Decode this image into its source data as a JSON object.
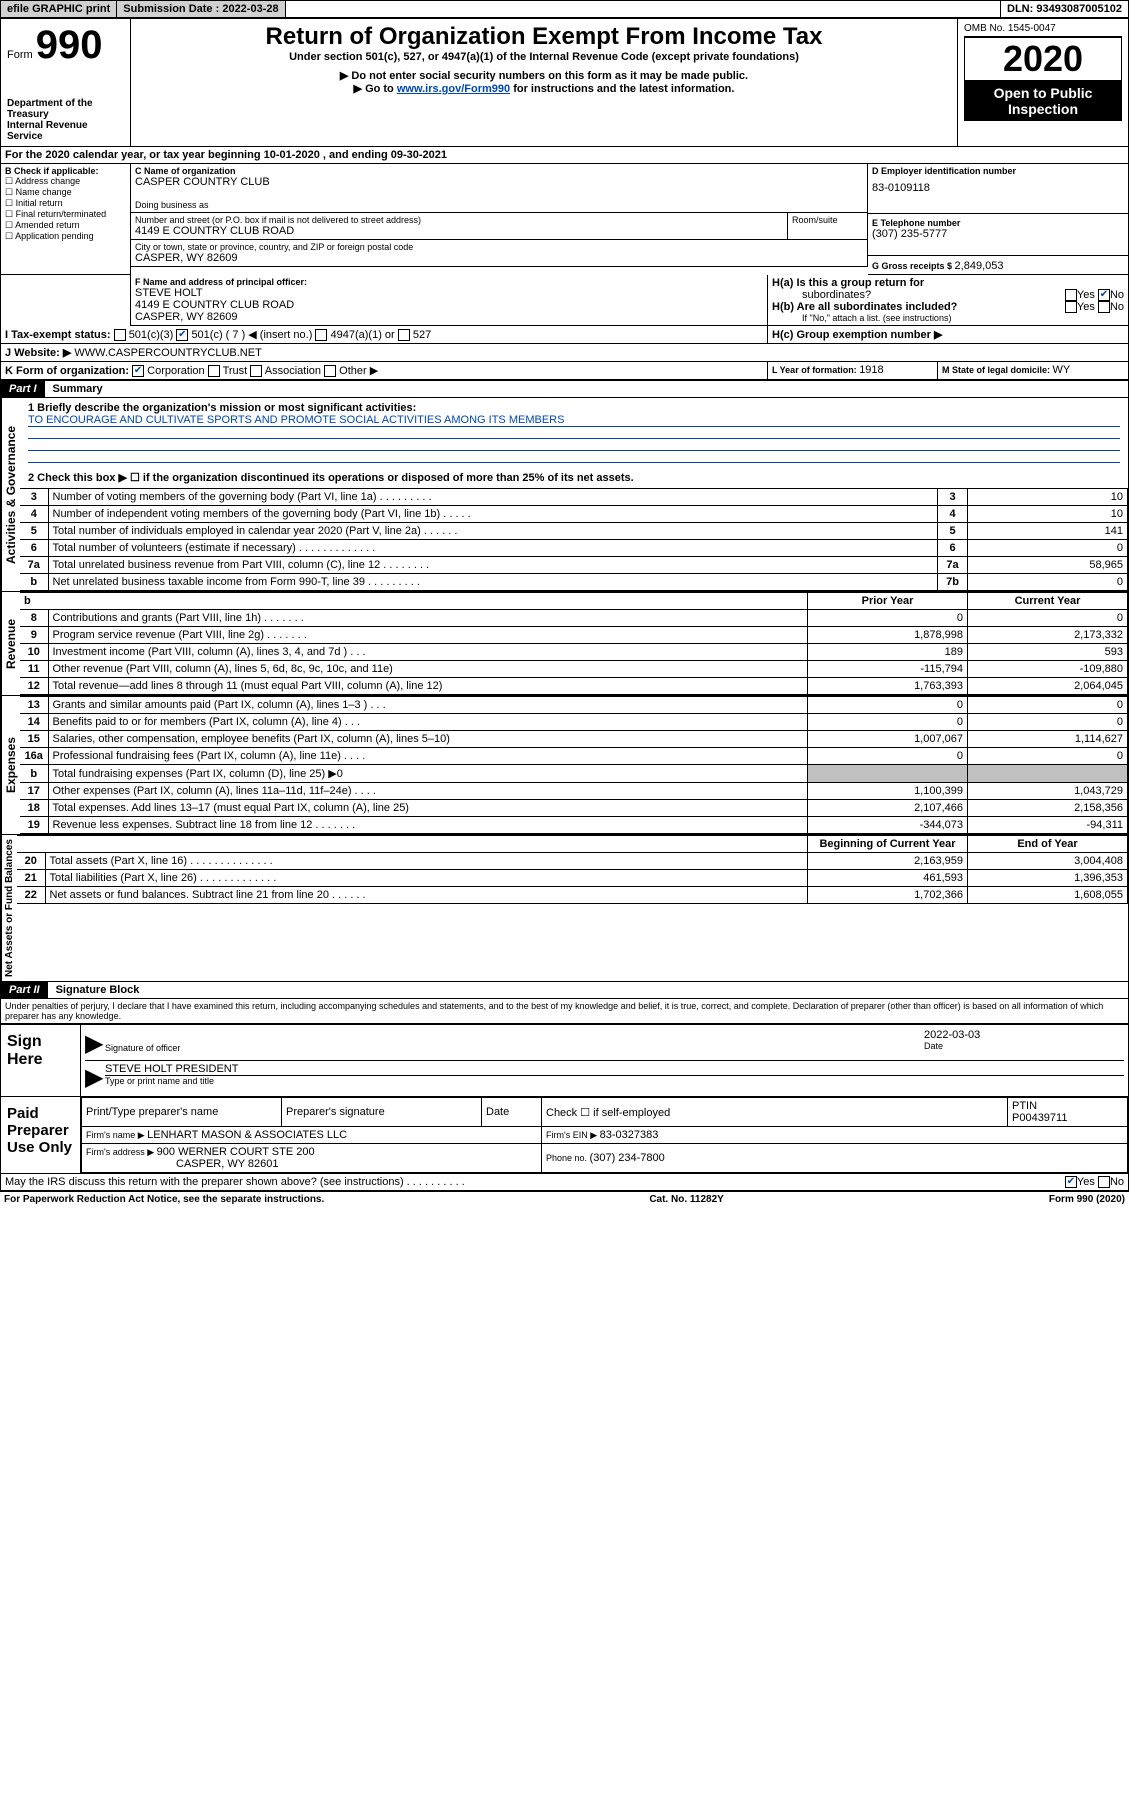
{
  "topbar": {
    "efile": "efile GRAPHIC print",
    "sub_label": "Submission Date : ",
    "sub_date": "2022-03-28",
    "dln_label": "DLN: ",
    "dln": "93493087005102"
  },
  "header": {
    "form_word": "Form",
    "form_no": "990",
    "dept1": "Department of the",
    "dept2": "Treasury",
    "dept3": "Internal Revenue Service",
    "title": "Return of Organization Exempt From Income Tax",
    "sub1": "Under section 501(c), 527, or 4947(a)(1) of the Internal Revenue Code (except private foundations)",
    "sub2": "▶ Do not enter social security numbers on this form as it may be made public.",
    "sub3a": "▶ Go to ",
    "sub3_link": "www.irs.gov/Form990",
    "sub3b": " for instructions and the latest information.",
    "omb": "OMB No. 1545-0047",
    "year": "2020",
    "inspect1": "Open to Public",
    "inspect2": "Inspection"
  },
  "line_a": "For the 2020 calendar year, or tax year beginning 10-01-2020   , and ending 09-30-2021",
  "box_b": {
    "hdr": "B Check if applicable:",
    "items": [
      "Address change",
      "Name change",
      "Initial return",
      "Final return/terminated",
      "Amended return",
      "Application pending"
    ]
  },
  "box_c": {
    "hdr_name": "C Name of organization",
    "org": "CASPER COUNTRY CLUB",
    "dba_hdr": "Doing business as",
    "street_hdr": "Number and street (or P.O. box if mail is not delivered to street address)",
    "room_hdr": "Room/suite",
    "street": "4149 E COUNTRY CLUB ROAD",
    "city_hdr": "City or town, state or province, country, and ZIP or foreign postal code",
    "city": "CASPER, WY  82609"
  },
  "box_d": {
    "hdr": "D Employer identification number",
    "val": "83-0109118"
  },
  "box_e": {
    "hdr": "E Telephone number",
    "val": "(307) 235-5777"
  },
  "box_g": {
    "hdr": "G Gross receipts $ ",
    "val": "2,849,053"
  },
  "box_f": {
    "hdr": "F Name and address of principal officer:",
    "name": "STEVE HOLT",
    "addr1": "4149 E COUNTRY CLUB ROAD",
    "addr2": "CASPER, WY  82609"
  },
  "box_h": {
    "a": "H(a)  Is this a group return for",
    "a2": "subordinates?",
    "b": "H(b)  Are all subordinates included?",
    "b2": "If \"No,\" attach a list. (see instructions)",
    "c": "H(c)  Group exemption number ▶",
    "yes": "Yes",
    "no": "No"
  },
  "line_i": {
    "label": "I  Tax-exempt status:",
    "o1": "501(c)(3)",
    "o2": "501(c) ( 7 ) ◀ (insert no.)",
    "o3": "4947(a)(1) or",
    "o4": "527"
  },
  "line_j": {
    "label": "J  Website: ▶",
    "val": "WWW.CASPERCOUNTRYCLUB.NET"
  },
  "line_k": {
    "label": "K Form of organization:",
    "o1": "Corporation",
    "o2": "Trust",
    "o3": "Association",
    "o4": "Other ▶"
  },
  "line_l": {
    "label": "L Year of formation: ",
    "val": "1918"
  },
  "line_m": {
    "label": "M State of legal domicile: ",
    "val": "WY"
  },
  "part1": {
    "hdr": "Part I",
    "title": "Summary",
    "side1": "Activities & Governance",
    "side2": "Revenue",
    "side3": "Expenses",
    "side4": "Net Assets or Fund Balances",
    "q1": "1  Briefly describe the organization's mission or most significant activities:",
    "q1_ans": "TO ENCOURAGE AND CULTIVATE SPORTS AND PROMOTE SOCIAL ACTIVITIES AMONG ITS MEMBERS",
    "q2": "2   Check this box ▶ ☐  if the organization discontinued its operations or disposed of more than 25% of its net assets.",
    "col_prior": "Prior Year",
    "col_curr": "Current Year",
    "col_beg": "Beginning of Current Year",
    "col_end": "End of Year",
    "rows_gov": [
      {
        "n": "3",
        "t": "Number of voting members of the governing body (Part VI, line 1a)   .    .    .    .    .    .    .    .    .",
        "c": "3",
        "v": "10"
      },
      {
        "n": "4",
        "t": "Number of independent voting members of the governing body (Part VI, line 1b)   .    .    .    .    .",
        "c": "4",
        "v": "10"
      },
      {
        "n": "5",
        "t": "Total number of individuals employed in calendar year 2020 (Part V, line 2a)   .    .    .    .    .    .",
        "c": "5",
        "v": "141"
      },
      {
        "n": "6",
        "t": "Total number of volunteers (estimate if necessary)    .    .    .    .    .    .    .    .    .    .    .    .    .",
        "c": "6",
        "v": "0"
      },
      {
        "n": "7a",
        "t": "Total unrelated business revenue from Part VIII, column (C), line 12   .    .    .    .    .    .    .    .",
        "c": "7a",
        "v": "58,965"
      },
      {
        "n": "",
        "t": "Net unrelated business taxable income from Form 990-T, line 39  .    .    .    .    .    .    .    .    .",
        "c": "7b",
        "v": "0",
        "sub": "b"
      }
    ],
    "rows_rev": [
      {
        "n": "8",
        "t": "Contributions and grants (Part VIII, line 1h)    .    .    .    .    .    .    .",
        "p": "0",
        "c": "0"
      },
      {
        "n": "9",
        "t": "Program service revenue (Part VIII, line 2g)   .    .    .    .    .    .    .",
        "p": "1,878,998",
        "c": "2,173,332"
      },
      {
        "n": "10",
        "t": "Investment income (Part VIII, column (A), lines 3, 4, and 7d )   .    .    .",
        "p": "189",
        "c": "593"
      },
      {
        "n": "11",
        "t": "Other revenue (Part VIII, column (A), lines 5, 6d, 8c, 9c, 10c, and 11e)",
        "p": "-115,794",
        "c": "-109,880"
      },
      {
        "n": "12",
        "t": "Total revenue—add lines 8 through 11 (must equal Part VIII, column (A), line 12)",
        "p": "1,763,393",
        "c": "2,064,045"
      }
    ],
    "rows_exp": [
      {
        "n": "13",
        "t": "Grants and similar amounts paid (Part IX, column (A), lines 1–3 )   .    .    .",
        "p": "0",
        "c": "0"
      },
      {
        "n": "14",
        "t": "Benefits paid to or for members (Part IX, column (A), line 4)   .    .    .",
        "p": "0",
        "c": "0"
      },
      {
        "n": "15",
        "t": "Salaries, other compensation, employee benefits (Part IX, column (A), lines 5–10)",
        "p": "1,007,067",
        "c": "1,114,627"
      },
      {
        "n": "16a",
        "t": "Professional fundraising fees (Part IX, column (A), line 11e)   .    .    .    .",
        "p": "0",
        "c": "0"
      },
      {
        "n": "b",
        "t": "Total fundraising expenses (Part IX, column (D), line 25) ▶0",
        "p": "",
        "c": "",
        "shade": true,
        "sub": true
      },
      {
        "n": "17",
        "t": "Other expenses (Part IX, column (A), lines 11a–11d, 11f–24e)   .    .    .    .",
        "p": "1,100,399",
        "c": "1,043,729"
      },
      {
        "n": "18",
        "t": "Total expenses. Add lines 13–17 (must equal Part IX, column (A), line 25)",
        "p": "2,107,466",
        "c": "2,158,356"
      },
      {
        "n": "19",
        "t": "Revenue less expenses. Subtract line 18 from line 12   .    .    .    .    .    .    .",
        "p": "-344,073",
        "c": "-94,311"
      }
    ],
    "rows_net": [
      {
        "n": "20",
        "t": "Total assets (Part X, line 16)  .    .    .    .    .    .    .    .    .    .    .    .    .    .",
        "p": "2,163,959",
        "c": "3,004,408"
      },
      {
        "n": "21",
        "t": "Total liabilities (Part X, line 26)  .    .    .    .    .    .    .    .    .    .    .    .    .",
        "p": "461,593",
        "c": "1,396,353"
      },
      {
        "n": "22",
        "t": "Net assets or fund balances. Subtract line 21 from line 20  .    .    .    .    .    .",
        "p": "1,702,366",
        "c": "1,608,055"
      }
    ]
  },
  "part2": {
    "hdr": "Part II",
    "title": "Signature Block",
    "perjury": "Under penalties of perjury, I declare that I have examined this return, including accompanying schedules and statements, and to the best of my knowledge and belief, it is true, correct, and complete. Declaration of preparer (other than officer) is based on all information of which preparer has any knowledge.",
    "sign_here": "Sign Here",
    "sig_of_officer": "Signature of officer",
    "date_lbl": "Date",
    "date_val": "2022-03-03",
    "officer_name": "STEVE HOLT PRESIDENT",
    "type_name": "Type or print name and title",
    "paid_prep": "Paid Preparer Use Only",
    "print_name_hdr": "Print/Type preparer's name",
    "prep_sig_hdr": "Preparer's signature",
    "date_hdr": "Date",
    "check_self": "Check ☐ if self-employed",
    "ptin_hdr": "PTIN",
    "ptin_val": "P00439711",
    "firm_name_lbl": "Firm's name    ▶ ",
    "firm_name": "LENHART MASON & ASSOCIATES LLC",
    "firm_ein_lbl": "Firm's EIN ▶ ",
    "firm_ein": "83-0327383",
    "firm_addr_lbl": "Firm's address ▶ ",
    "firm_addr1": "900 WERNER COURT STE 200",
    "firm_addr2": "CASPER, WY  82601",
    "phone_lbl": "Phone no. ",
    "phone": "(307) 234-7800",
    "discuss": "May the IRS discuss this return with the preparer shown above? (see instructions)   .    .    .    .    .    .    .    .    .    .",
    "yes": "Yes",
    "no": "No"
  },
  "footer": {
    "pra": "For Paperwork Reduction Act Notice, see the separate instructions.",
    "cat": "Cat. No. 11282Y",
    "form": "Form 990 (2020)"
  }
}
